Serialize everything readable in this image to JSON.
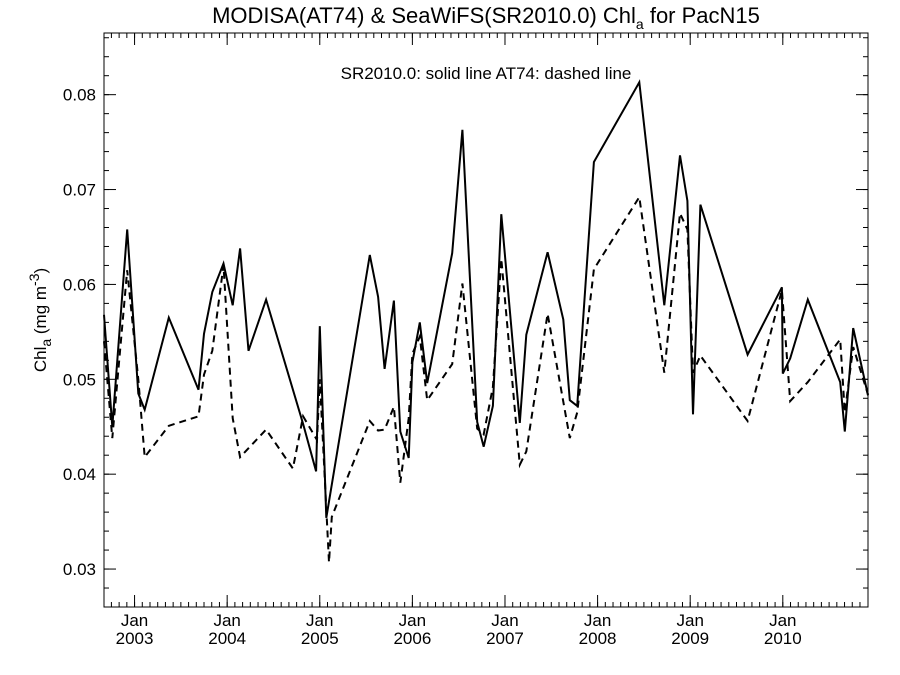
{
  "chart_data": {
    "type": "line",
    "title_parts": {
      "pre": "MODISA(AT74) & SeaWiFS(SR2010.0)  Chl",
      "sub": "a",
      "post": " for PacN15"
    },
    "ylabel_parts": {
      "pre": "Chl",
      "sub": "a",
      "mid": " (mg m",
      "sup": "-3",
      "post": ")"
    },
    "annotation": "SR2010.0: solid line   AT74: dashed line",
    "ylim": [
      0.026,
      0.0865
    ],
    "xlim": [
      2002.67,
      2010.92
    ],
    "yticks": [
      0.03,
      0.04,
      0.05,
      0.06,
      0.07,
      0.08
    ],
    "ytick_labels": [
      "0.03",
      "0.04",
      "0.05",
      "0.06",
      "0.07",
      "0.08"
    ],
    "xticks": [
      {
        "x": 2003.0,
        "month": "Jan",
        "year": "2003"
      },
      {
        "x": 2004.0,
        "month": "Jan",
        "year": "2004"
      },
      {
        "x": 2005.0,
        "month": "Jan",
        "year": "2005"
      },
      {
        "x": 2006.0,
        "month": "Jan",
        "year": "2006"
      },
      {
        "x": 2007.0,
        "month": "Jan",
        "year": "2007"
      },
      {
        "x": 2008.0,
        "month": "Jan",
        "year": "2008"
      },
      {
        "x": 2009.0,
        "month": "Jan",
        "year": "2009"
      },
      {
        "x": 2010.0,
        "month": "Jan",
        "year": "2010"
      }
    ],
    "grid": false,
    "series": [
      {
        "name": "SR2010.0",
        "style": "solid",
        "points": [
          [
            2002.67,
            0.0568
          ],
          [
            2002.76,
            0.045
          ],
          [
            2002.92,
            0.0658
          ],
          [
            2003.04,
            0.0485
          ],
          [
            2003.11,
            0.0468
          ],
          [
            2003.37,
            0.0565
          ],
          [
            2003.69,
            0.0489
          ],
          [
            2003.75,
            0.0548
          ],
          [
            2003.84,
            0.0592
          ],
          [
            2003.96,
            0.0622
          ],
          [
            2004.06,
            0.0578
          ],
          [
            2004.14,
            0.0638
          ],
          [
            2004.23,
            0.053
          ],
          [
            2004.42,
            0.0584
          ],
          [
            2004.82,
            0.0453
          ],
          [
            2004.96,
            0.0403
          ],
          [
            2005.0,
            0.0556
          ],
          [
            2005.07,
            0.0354
          ],
          [
            2005.54,
            0.0631
          ],
          [
            2005.63,
            0.0587
          ],
          [
            2005.7,
            0.0511
          ],
          [
            2005.8,
            0.0583
          ],
          [
            2005.87,
            0.0445
          ],
          [
            2005.96,
            0.0417
          ],
          [
            2006.0,
            0.0518
          ],
          [
            2006.08,
            0.056
          ],
          [
            2006.16,
            0.0496
          ],
          [
            2006.43,
            0.0633
          ],
          [
            2006.54,
            0.0763
          ],
          [
            2006.7,
            0.0455
          ],
          [
            2006.77,
            0.0429
          ],
          [
            2006.87,
            0.0472
          ],
          [
            2006.96,
            0.0674
          ],
          [
            2007.16,
            0.0454
          ],
          [
            2007.23,
            0.0547
          ],
          [
            2007.46,
            0.0634
          ],
          [
            2007.63,
            0.0563
          ],
          [
            2007.7,
            0.0478
          ],
          [
            2007.78,
            0.0472
          ],
          [
            2007.96,
            0.0729
          ],
          [
            2008.45,
            0.0813
          ],
          [
            2008.72,
            0.0578
          ],
          [
            2008.89,
            0.0736
          ],
          [
            2008.97,
            0.0688
          ],
          [
            2009.03,
            0.0463
          ],
          [
            2009.11,
            0.0684
          ],
          [
            2009.62,
            0.0526
          ],
          [
            2009.99,
            0.0597
          ],
          [
            2010.0,
            0.0506
          ],
          [
            2010.08,
            0.0522
          ],
          [
            2010.27,
            0.0584
          ],
          [
            2010.62,
            0.0497
          ],
          [
            2010.67,
            0.0445
          ],
          [
            2010.76,
            0.0554
          ],
          [
            2010.92,
            0.0483
          ]
        ]
      },
      {
        "name": "AT74",
        "style": "dashed",
        "points": [
          [
            2002.67,
            0.054
          ],
          [
            2002.76,
            0.0438
          ],
          [
            2002.92,
            0.0615
          ],
          [
            2003.04,
            0.05
          ],
          [
            2003.11,
            0.0418
          ],
          [
            2003.37,
            0.0451
          ],
          [
            2003.69,
            0.0461
          ],
          [
            2003.75,
            0.0505
          ],
          [
            2003.84,
            0.053
          ],
          [
            2003.96,
            0.062
          ],
          [
            2004.06,
            0.0459
          ],
          [
            2004.14,
            0.0418
          ],
          [
            2004.42,
            0.0447
          ],
          [
            2004.71,
            0.0406
          ],
          [
            2004.82,
            0.0461
          ],
          [
            2004.97,
            0.0436
          ],
          [
            2005.0,
            0.05
          ],
          [
            2005.1,
            0.0307
          ],
          [
            2005.13,
            0.0355
          ],
          [
            2005.54,
            0.0456
          ],
          [
            2005.63,
            0.0446
          ],
          [
            2005.7,
            0.0447
          ],
          [
            2005.8,
            0.0471
          ],
          [
            2005.87,
            0.0391
          ],
          [
            2005.96,
            0.0459
          ],
          [
            2006.0,
            0.0527
          ],
          [
            2006.08,
            0.0545
          ],
          [
            2006.16,
            0.0478
          ],
          [
            2006.43,
            0.0516
          ],
          [
            2006.54,
            0.0601
          ],
          [
            2006.7,
            0.0448
          ],
          [
            2006.77,
            0.0442
          ],
          [
            2006.87,
            0.0492
          ],
          [
            2006.96,
            0.0627
          ],
          [
            2007.16,
            0.041
          ],
          [
            2007.23,
            0.0424
          ],
          [
            2007.46,
            0.0569
          ],
          [
            2007.7,
            0.0438
          ],
          [
            2007.78,
            0.0465
          ],
          [
            2007.96,
            0.0616
          ],
          [
            2008.45,
            0.0692
          ],
          [
            2008.72,
            0.0507
          ],
          [
            2008.89,
            0.0675
          ],
          [
            2008.97,
            0.0658
          ],
          [
            2009.03,
            0.0507
          ],
          [
            2009.11,
            0.0525
          ],
          [
            2009.62,
            0.0456
          ],
          [
            2009.99,
            0.0594
          ],
          [
            2010.08,
            0.0477
          ],
          [
            2010.27,
            0.0497
          ],
          [
            2010.62,
            0.0542
          ],
          [
            2010.67,
            0.0465
          ],
          [
            2010.76,
            0.0534
          ],
          [
            2010.92,
            0.0484
          ]
        ]
      }
    ]
  }
}
